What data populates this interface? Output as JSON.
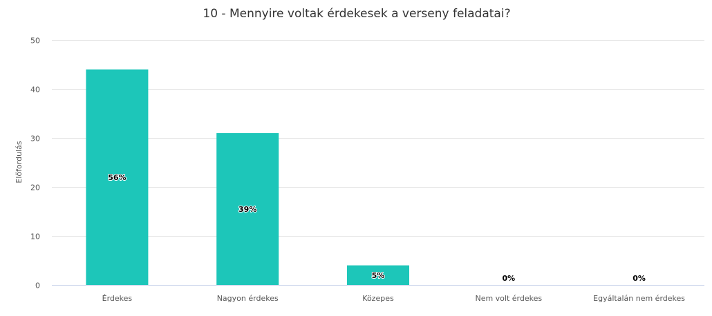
{
  "chart_data": {
    "type": "bar",
    "title": "10 - Mennyire voltak érdekesek a verseny feladatai?",
    "xlabel": "",
    "ylabel": "Előfordulás",
    "categories": [
      "Érdekes",
      "Nagyon érdekes",
      "Közepes",
      "Nem volt érdekes",
      "Egyáltalán nem érdekes"
    ],
    "values": [
      44,
      31,
      4,
      0,
      0
    ],
    "data_labels": [
      "56%",
      "39%",
      "5%",
      "0%",
      "0%"
    ],
    "ylim": [
      0,
      50
    ],
    "yticks": [
      0,
      10,
      20,
      30,
      40,
      50
    ],
    "grid": true,
    "legend": "none",
    "colors": {
      "bar": "#1dc6b9"
    }
  }
}
